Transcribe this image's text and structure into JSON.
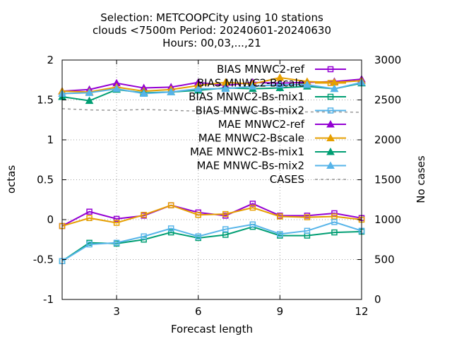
{
  "chart_data": {
    "type": "line",
    "title_lines": [
      "Selection: METCOOPCity using    10 stations",
      "clouds <7500m   Period: 20240601-20240630",
      "Hours: 00,03,...,21"
    ],
    "xlabel": "Forecast length",
    "ylabel": "octas",
    "y2label": "No cases",
    "xlim": [
      1,
      12
    ],
    "ylim": [
      -1,
      2
    ],
    "y2lim": [
      0,
      3000
    ],
    "x_ticks": [
      3,
      6,
      9,
      12
    ],
    "y_ticks": [
      "2",
      "1.5",
      "1",
      "0.5",
      "0",
      "-0.5",
      "-1"
    ],
    "y2_ticks": [
      "3000",
      "2500",
      "2000",
      "1500",
      "1000",
      "500",
      "0"
    ],
    "grid": true,
    "legend_position": "top-right",
    "x": [
      1,
      2,
      3,
      4,
      5,
      6,
      7,
      8,
      9,
      10,
      11,
      12
    ],
    "series": [
      {
        "name": "BIAS MNWC2-ref",
        "color": "#9400d3",
        "marker": "square",
        "axis": "y",
        "values": [
          -0.08,
          0.1,
          0.01,
          0.05,
          0.18,
          0.09,
          0.05,
          0.2,
          0.05,
          0.05,
          0.08,
          0.02
        ]
      },
      {
        "name": "BIAS MNWC2-Bscale",
        "color": "#e69f00",
        "marker": "square",
        "axis": "y",
        "values": [
          -0.08,
          0.02,
          -0.04,
          0.06,
          0.18,
          0.06,
          0.07,
          0.15,
          0.04,
          0.03,
          0.04,
          0.0
        ]
      },
      {
        "name": "BIAS MNWC2-Bs-mix1",
        "color": "#009e73",
        "marker": "square",
        "axis": "y",
        "values": [
          -0.52,
          -0.29,
          -0.3,
          -0.25,
          -0.16,
          -0.23,
          -0.19,
          -0.09,
          -0.2,
          -0.2,
          -0.16,
          -0.15
        ]
      },
      {
        "name": "BIAS MNWC-Bs-mix2",
        "color": "#56b4e9",
        "marker": "square",
        "axis": "y",
        "values": [
          -0.52,
          -0.31,
          -0.29,
          -0.21,
          -0.11,
          -0.21,
          -0.12,
          -0.06,
          -0.18,
          -0.14,
          -0.03,
          -0.14
        ]
      },
      {
        "name": "MAE MNWC2-ref",
        "color": "#9400d3",
        "marker": "triangle",
        "axis": "y",
        "values": [
          1.61,
          1.63,
          1.71,
          1.65,
          1.66,
          1.72,
          1.68,
          1.72,
          1.71,
          1.72,
          1.73,
          1.76
        ]
      },
      {
        "name": "MAE MNWC2-Bscale",
        "color": "#e69f00",
        "marker": "triangle",
        "axis": "y",
        "values": [
          1.61,
          1.6,
          1.66,
          1.61,
          1.63,
          1.68,
          1.72,
          1.7,
          1.78,
          1.73,
          1.72,
          1.74
        ]
      },
      {
        "name": "MAE MNWC2-Bs-mix1",
        "color": "#009e73",
        "marker": "triangle",
        "axis": "y",
        "values": [
          1.54,
          1.49,
          1.63,
          1.59,
          1.6,
          1.62,
          1.65,
          1.64,
          1.65,
          1.67,
          1.64,
          1.71
        ]
      },
      {
        "name": "MAE MNWC-Bs-mix2",
        "color": "#56b4e9",
        "marker": "triangle",
        "axis": "y",
        "values": [
          1.58,
          1.59,
          1.64,
          1.58,
          1.6,
          1.64,
          1.64,
          1.67,
          1.69,
          1.69,
          1.64,
          1.72
        ]
      },
      {
        "name": "CASES",
        "color": "#999999",
        "marker": "none",
        "dashed": true,
        "axis": "y2",
        "values": [
          2390,
          2375,
          2370,
          2380,
          2370,
          2360,
          2360,
          2355,
          2350,
          2350,
          2350,
          2345
        ]
      }
    ]
  }
}
